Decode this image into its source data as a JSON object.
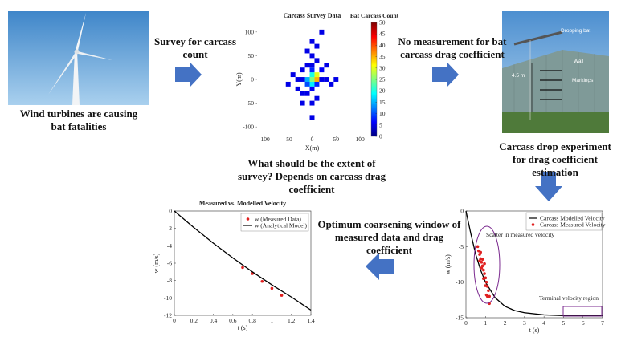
{
  "captions": {
    "turbines": "Wind turbines are causing bat fatalities",
    "survey": "Survey for carcass count",
    "no_measurement": "No measurement for bat carcass drag coefficient",
    "extent": "What should be the extent of survey? Depends on carcass drag coefficient",
    "drop_experiment": "Carcass drop experiment for drag coefficient estimation",
    "optimum": "Optimum coarsening window of measured data and drag coefficient"
  },
  "photo_labels": {
    "dropping_bat": "Dropping bat",
    "wall": "Wall",
    "height": "4.5 m",
    "markings": "Markings"
  },
  "survey_map": {
    "title": "Carcass Survey Data",
    "xlabel": "X(m)",
    "ylabel": "Y(m)",
    "xlim": [
      -115,
      115
    ],
    "ylim": [
      -120,
      120
    ],
    "xticks": [
      -100,
      -50,
      0,
      50,
      100
    ],
    "yticks": [
      100,
      50,
      0,
      -50,
      -100
    ],
    "colorbar": {
      "title": "Bat Carcass Count",
      "lim": [
        0,
        50
      ],
      "ticks": [
        0,
        5,
        10,
        15,
        20,
        25,
        30,
        35,
        40,
        45,
        50
      ]
    },
    "cells": [
      {
        "x": 0,
        "y": 0,
        "count": 25
      },
      {
        "x": 10,
        "y": 0,
        "count": 35
      },
      {
        "x": 0,
        "y": 10,
        "count": 20
      },
      {
        "x": -10,
        "y": 0,
        "count": 15
      },
      {
        "x": 10,
        "y": 10,
        "count": 30
      },
      {
        "x": -10,
        "y": -10,
        "count": 10
      },
      {
        "x": 0,
        "y": -10,
        "count": 18
      },
      {
        "x": 10,
        "y": -10,
        "count": 8
      },
      {
        "x": 20,
        "y": 0,
        "count": 5
      },
      {
        "x": -20,
        "y": 0,
        "count": 5
      },
      {
        "x": -30,
        "y": 0,
        "count": 5
      },
      {
        "x": 30,
        "y": 0,
        "count": 5
      },
      {
        "x": 50,
        "y": 0,
        "count": 5
      },
      {
        "x": 0,
        "y": 20,
        "count": 8
      },
      {
        "x": 0,
        "y": 30,
        "count": 5
      },
      {
        "x": 10,
        "y": 40,
        "count": 5
      },
      {
        "x": -10,
        "y": 30,
        "count": 5
      },
      {
        "x": 0,
        "y": 50,
        "count": 5
      },
      {
        "x": -10,
        "y": 60,
        "count": 5
      },
      {
        "x": 10,
        "y": 70,
        "count": 5
      },
      {
        "x": 0,
        "y": 80,
        "count": 5
      },
      {
        "x": 20,
        "y": 100,
        "count": 5
      },
      {
        "x": -20,
        "y": 20,
        "count": 5
      },
      {
        "x": 20,
        "y": 20,
        "count": 6
      },
      {
        "x": -40,
        "y": 10,
        "count": 5
      },
      {
        "x": -50,
        "y": -10,
        "count": 5
      },
      {
        "x": 40,
        "y": -10,
        "count": 5
      },
      {
        "x": 0,
        "y": -20,
        "count": 6
      },
      {
        "x": -10,
        "y": -30,
        "count": 5
      },
      {
        "x": 10,
        "y": -40,
        "count": 5
      },
      {
        "x": 0,
        "y": -50,
        "count": 5
      },
      {
        "x": -20,
        "y": -50,
        "count": 5
      },
      {
        "x": 0,
        "y": -80,
        "count": 5
      },
      {
        "x": -30,
        "y": -20,
        "count": 5
      },
      {
        "x": 30,
        "y": 30,
        "count": 5
      },
      {
        "x": -20,
        "y": -30,
        "count": 5
      }
    ]
  },
  "velocity_fit": {
    "title": "Measured vs. Modelled Velocity",
    "xlabel": "t (s)",
    "ylabel": "w (m/s)",
    "xlim": [
      0,
      1.4
    ],
    "ylim": [
      -12,
      0
    ],
    "xticks": [
      0,
      0.2,
      0.4,
      0.6,
      0.8,
      1,
      1.2,
      1.4
    ],
    "yticks": [
      0,
      -2,
      -4,
      -6,
      -8,
      -10,
      -12
    ],
    "series": [
      {
        "name": "w (Measured Data)",
        "type": "scatter",
        "color": "#e02020",
        "x": [
          0.7,
          0.8,
          0.9,
          1.0,
          1.1
        ],
        "values": [
          -6.5,
          -7.2,
          -8.1,
          -8.9,
          -9.7
        ]
      },
      {
        "name": "w (Analytical Model)",
        "type": "line",
        "color": "#000000",
        "x": [
          0,
          0.2,
          0.4,
          0.6,
          0.8,
          1.0,
          1.2,
          1.4
        ],
        "values": [
          0,
          -1.9,
          -3.7,
          -5.4,
          -7.0,
          -8.5,
          -9.9,
          -11.4
        ]
      }
    ]
  },
  "velocity_drop": {
    "xlabel": "t (s)",
    "ylabel": "w (m/s)",
    "xlim": [
      0,
      7
    ],
    "ylim": [
      -15,
      0
    ],
    "xticks": [
      0,
      1,
      2,
      3,
      4,
      5,
      6,
      7
    ],
    "yticks": [
      0,
      -5,
      -10,
      -15
    ],
    "annotations": [
      "Scatter in measured velocity",
      "Terminal velocity region"
    ],
    "series": [
      {
        "name": "Carcass Modelled Velocity",
        "type": "line",
        "color": "#000000",
        "x": [
          0,
          0.25,
          0.5,
          0.75,
          1,
          1.5,
          2,
          2.5,
          3,
          4,
          5,
          6,
          7
        ],
        "values": [
          0,
          -3.2,
          -6.1,
          -8.3,
          -10,
          -12.2,
          -13.4,
          -14,
          -14.3,
          -14.6,
          -14.7,
          -14.7,
          -14.7
        ]
      },
      {
        "name": "Carcass Measured Velocity",
        "type": "scatter",
        "color": "#e02020",
        "x": [
          0.6,
          0.65,
          0.7,
          0.75,
          0.8,
          0.85,
          0.9,
          0.95,
          1.0,
          1.05,
          1.1,
          1.15,
          1.2,
          0.7,
          0.8,
          0.9,
          1.0,
          1.1,
          1.2,
          0.75,
          0.85,
          0.95,
          1.05
        ],
        "values": [
          -5,
          -5.6,
          -6.1,
          -6.7,
          -7.2,
          -7.7,
          -8.3,
          -8.8,
          -9.4,
          -10,
          -10.6,
          -11.2,
          -12,
          -7,
          -8,
          -9.5,
          -10.5,
          -12,
          -13,
          -5.8,
          -6.8,
          -7.4,
          -11.8
        ]
      }
    ]
  }
}
